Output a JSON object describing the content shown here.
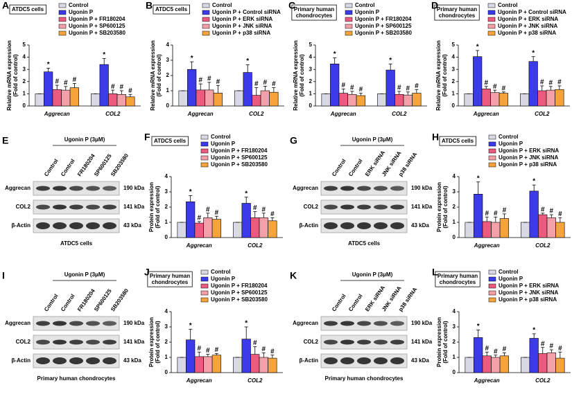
{
  "chart_data": [
    {
      "type": "bar",
      "panel": "A",
      "label": [
        "ATDC5 cells"
      ],
      "ylabel": [
        "Relative mRNA expression",
        "(Fold of control)"
      ],
      "categories": [
        "Aggrecan",
        "COL2"
      ],
      "ylim": [
        0,
        5
      ],
      "yticks": [
        0,
        1,
        2,
        3,
        4,
        5
      ],
      "series": [
        {
          "name": "Control",
          "color": "#d9d9e6",
          "values": [
            1,
            1
          ],
          "errors": [
            0,
            0
          ]
        },
        {
          "name": "Ugonin P",
          "color": "#3b3bea",
          "values": [
            2.8,
            3.4
          ],
          "errors": [
            0.3,
            0.5
          ],
          "sig": [
            "*",
            "*"
          ]
        },
        {
          "name": "Ugonin P + FR180204",
          "color": "#ec5a80",
          "values": [
            1.35,
            1.0
          ],
          "errors": [
            0.35,
            0.3
          ],
          "sig": [
            "#",
            "#"
          ]
        },
        {
          "name": "Ugonin P + SP600125",
          "color": "#f4a0a8",
          "values": [
            1.3,
            0.95
          ],
          "errors": [
            0.3,
            0.3
          ],
          "sig": [
            "#",
            "#"
          ]
        },
        {
          "name": "Ugonin P + SB203580",
          "color": "#f5a33a",
          "values": [
            1.5,
            0.75
          ],
          "errors": [
            0.35,
            0.2
          ],
          "sig": [
            "#",
            "#"
          ]
        }
      ]
    },
    {
      "type": "bar",
      "panel": "B",
      "label": [
        "ATDC5 cells"
      ],
      "ylabel": [
        "Relative mRNA expression",
        "(Fold of control)"
      ],
      "categories": [
        "Aggrecan",
        "COL2"
      ],
      "ylim": [
        0,
        4
      ],
      "yticks": [
        0,
        1,
        2,
        3,
        4
      ],
      "series": [
        {
          "name": "Control",
          "color": "#d9d9e6",
          "values": [
            1,
            1
          ],
          "errors": [
            0,
            0
          ]
        },
        {
          "name": "Ugonin P + Control siRNA",
          "color": "#3b3bea",
          "values": [
            2.4,
            2.2
          ],
          "errors": [
            0.5,
            0.5
          ],
          "sig": [
            "*",
            "*"
          ]
        },
        {
          "name": "Ugonin P + ERK siRNA",
          "color": "#ec5a80",
          "values": [
            1.05,
            0.7
          ],
          "errors": [
            0.4,
            0.5
          ],
          "sig": [
            "#",
            "#"
          ]
        },
        {
          "name": "Ugonin P + JNK siRNA",
          "color": "#f4a0a8",
          "values": [
            1.05,
            1.0
          ],
          "errors": [
            0.5,
            0.3
          ],
          "sig": [
            "#",
            "#"
          ]
        },
        {
          "name": "Ugonin P + p38 siRNA",
          "color": "#f5a33a",
          "values": [
            0.85,
            0.9
          ],
          "errors": [
            0.5,
            0.3
          ],
          "sig": [
            "#",
            "#"
          ]
        }
      ]
    },
    {
      "type": "bar",
      "panel": "C",
      "label": [
        "Primary human",
        "chondrocytes"
      ],
      "ylabel": [
        "Relative mRNA expression",
        "(Fold of control)"
      ],
      "categories": [
        "Aggrecan",
        "COL2"
      ],
      "ylim": [
        0,
        5
      ],
      "yticks": [
        0,
        1,
        2,
        3,
        4,
        5
      ],
      "series": [
        {
          "name": "Control",
          "color": "#d9d9e6",
          "values": [
            1,
            1
          ],
          "errors": [
            0,
            0
          ]
        },
        {
          "name": "Ugonin P",
          "color": "#3b3bea",
          "values": [
            3.45,
            2.95
          ],
          "errors": [
            0.5,
            0.5
          ],
          "sig": [
            "*",
            "*"
          ]
        },
        {
          "name": "Ugonin P + FR180204",
          "color": "#ec5a80",
          "values": [
            1.05,
            0.95
          ],
          "errors": [
            0.35,
            0.25
          ],
          "sig": [
            "#",
            "#"
          ]
        },
        {
          "name": "Ugonin P + SP600125",
          "color": "#f4a0a8",
          "values": [
            0.95,
            0.9
          ],
          "errors": [
            0.25,
            0.25
          ],
          "sig": [
            "#",
            "#"
          ]
        },
        {
          "name": "Ugonin P + SB203580",
          "color": "#f5a33a",
          "values": [
            0.85,
            1.05
          ],
          "errors": [
            0.2,
            0.3
          ],
          "sig": [
            "#",
            "#"
          ]
        }
      ]
    },
    {
      "type": "bar",
      "panel": "D",
      "label": [
        "Primary human",
        "chondrocytes"
      ],
      "ylabel": [
        "Relative mRNA expression",
        "(Fold of control)"
      ],
      "categories": [
        "Aggrecan",
        "COL2"
      ],
      "ylim": [
        0,
        5
      ],
      "yticks": [
        0,
        1,
        2,
        3,
        4,
        5
      ],
      "series": [
        {
          "name": "Control",
          "color": "#d9d9e6",
          "values": [
            1,
            1
          ],
          "errors": [
            0,
            0
          ]
        },
        {
          "name": "Ugonin P + Control siRNA",
          "color": "#3b3bea",
          "values": [
            4.05,
            3.65
          ],
          "errors": [
            0.5,
            0.4
          ],
          "sig": [
            "*",
            "*"
          ]
        },
        {
          "name": "Ugonin P + ERK siRNA",
          "color": "#ec5a80",
          "values": [
            1.4,
            1.25
          ],
          "errors": [
            0.2,
            0.4
          ],
          "sig": [
            "#",
            "#"
          ]
        },
        {
          "name": "Ugonin P + JNK siRNA",
          "color": "#f4a0a8",
          "values": [
            1.1,
            1.3
          ],
          "errors": [
            0.2,
            0.3
          ],
          "sig": [
            "#",
            "#"
          ]
        },
        {
          "name": "Ugonin P + p38 siRNA",
          "color": "#f5a33a",
          "values": [
            1.05,
            1.35
          ],
          "errors": [
            0.1,
            0.3
          ],
          "sig": [
            "#",
            "#"
          ]
        }
      ]
    },
    {
      "type": "bar",
      "panel": "F",
      "label": [
        "ATDC5 cells"
      ],
      "ylabel": [
        "Protein expression",
        "(Fold of control)"
      ],
      "categories": [
        "Aggrecan",
        "COL2"
      ],
      "ylim": [
        0,
        4
      ],
      "yticks": [
        0,
        1,
        2,
        3,
        4
      ],
      "series": [
        {
          "name": "Control",
          "color": "#d9d9e6",
          "values": [
            1,
            1
          ],
          "errors": [
            0,
            0
          ]
        },
        {
          "name": "Ugonin P",
          "color": "#3b3bea",
          "values": [
            2.35,
            2.25
          ],
          "errors": [
            0.4,
            0.4
          ],
          "sig": [
            "*",
            "*"
          ]
        },
        {
          "name": "Ugonin P + FR180204",
          "color": "#ec5a80",
          "values": [
            0.95,
            1.3
          ],
          "errors": [
            0.1,
            0.4
          ],
          "sig": [
            "#",
            "#"
          ]
        },
        {
          "name": "Ugonin P + SP600125",
          "color": "#f4a0a8",
          "values": [
            1.3,
            1.3
          ],
          "errors": [
            0.3,
            0.3
          ],
          "sig": [
            "#",
            "#"
          ]
        },
        {
          "name": "Ugonin P + SB203580",
          "color": "#f5a33a",
          "values": [
            1.2,
            1.1
          ],
          "errors": [
            0.2,
            0.2
          ],
          "sig": [
            "#",
            "#"
          ]
        }
      ]
    },
    {
      "type": "bar",
      "panel": "H",
      "label": [
        "ATDC5 cells"
      ],
      "ylabel": [
        "Protein expression",
        "(Fold of control)"
      ],
      "categories": [
        "Aggrecan",
        "COL2"
      ],
      "ylim": [
        0,
        4
      ],
      "yticks": [
        0,
        1,
        2,
        3,
        4
      ],
      "series": [
        {
          "name": "Control",
          "color": "#d9d9e6",
          "values": [
            1,
            1
          ],
          "errors": [
            0,
            0
          ]
        },
        {
          "name": "Ugonin P",
          "color": "#3b3bea",
          "values": [
            2.85,
            3.05
          ],
          "errors": [
            0.8,
            0.4
          ],
          "sig": [
            "*",
            "*"
          ]
        },
        {
          "name": "Ugonin P + ERK siRNA",
          "color": "#ec5a80",
          "values": [
            1.05,
            1.5
          ],
          "errors": [
            0.3,
            0.1
          ],
          "sig": [
            "#",
            "#"
          ]
        },
        {
          "name": "Ugonin P + JNK siRNA",
          "color": "#f4a0a8",
          "values": [
            1.0,
            1.3
          ],
          "errors": [
            0.35,
            0.2
          ],
          "sig": [
            "#",
            "#"
          ]
        },
        {
          "name": "Ugonin P + p38 siRNA",
          "color": "#f5a33a",
          "values": [
            1.25,
            1.0
          ],
          "errors": [
            0.3,
            0.3
          ],
          "sig": [
            "#",
            "#"
          ]
        }
      ]
    },
    {
      "type": "bar",
      "panel": "J",
      "label": [
        "Primary human",
        "chondrocytes"
      ],
      "ylabel": [
        "Protein expression",
        "(Fold of control)"
      ],
      "categories": [
        "Aggrecan",
        "COL2"
      ],
      "ylim": [
        0,
        4
      ],
      "yticks": [
        0,
        1,
        2,
        3,
        4
      ],
      "series": [
        {
          "name": "Control",
          "color": "#d9d9e6",
          "values": [
            1,
            1
          ],
          "errors": [
            0,
            0
          ]
        },
        {
          "name": "Ugonin P",
          "color": "#3b3bea",
          "values": [
            2.15,
            2.2
          ],
          "errors": [
            0.7,
            0.8
          ],
          "sig": [
            "*",
            "*"
          ]
        },
        {
          "name": "Ugonin P + FR180204",
          "color": "#ec5a80",
          "values": [
            1.05,
            1.2
          ],
          "errors": [
            0.3,
            0.5
          ],
          "sig": [
            "#",
            "#"
          ]
        },
        {
          "name": "Ugonin P + SP600125",
          "color": "#f4a0a8",
          "values": [
            1.05,
            1.0
          ],
          "errors": [
            0.15,
            0.3
          ],
          "sig": [
            "#",
            "#"
          ]
        },
        {
          "name": "Ugonin P + SB203580",
          "color": "#f5a33a",
          "values": [
            1.15,
            0.95
          ],
          "errors": [
            0.1,
            0.2
          ],
          "sig": [
            "#",
            "#"
          ]
        }
      ]
    },
    {
      "type": "bar",
      "panel": "L",
      "label": [
        "Primary human",
        "chondrocytes"
      ],
      "ylabel": [
        "Protein expression",
        "(Fold of control)"
      ],
      "categories": [
        "Aggrecan",
        "COL2"
      ],
      "ylim": [
        0,
        4
      ],
      "yticks": [
        0,
        1,
        2,
        3,
        4
      ],
      "series": [
        {
          "name": "Control",
          "color": "#d9d9e6",
          "values": [
            1,
            1
          ],
          "errors": [
            0,
            0
          ]
        },
        {
          "name": "Ugonin P",
          "color": "#3b3bea",
          "values": [
            2.3,
            2.25
          ],
          "errors": [
            0.5,
            0.3
          ],
          "sig": [
            "*",
            "*"
          ]
        },
        {
          "name": "Ugonin P + ERK siRNA",
          "color": "#ec5a80",
          "values": [
            1.1,
            1.25
          ],
          "errors": [
            0.25,
            0.4
          ],
          "sig": [
            "#",
            "#"
          ]
        },
        {
          "name": "Ugonin P + JNK siRNA",
          "color": "#f4a0a8",
          "values": [
            1.0,
            1.3
          ],
          "errors": [
            0.15,
            0.2
          ],
          "sig": [
            "#",
            "#"
          ]
        },
        {
          "name": "Ugonin P + p38 siRNA",
          "color": "#f5a33a",
          "values": [
            1.1,
            0.95
          ],
          "errors": [
            0.2,
            0.4
          ],
          "sig": [
            "#",
            "#"
          ]
        }
      ]
    }
  ],
  "blots": [
    {
      "panel": "E",
      "treatment": "Ugonin P (3μM)",
      "lanes": [
        "Control",
        "Control",
        "FR180204",
        "SP600125",
        "SB203580"
      ],
      "rows": [
        "Aggrecan",
        "COL2",
        "β-Actin"
      ],
      "sizes": [
        "190 kDa",
        "141 kDa",
        "43 kDa"
      ],
      "caption": "ATDC5 cells"
    },
    {
      "panel": "G",
      "treatment": "Ugonin P (3μM)",
      "lanes": [
        "Control",
        "Control",
        "ERK siRNA",
        "JNK siRNA",
        "p38 siRNA"
      ],
      "rows": [
        "Aggrecan",
        "COL2",
        "β-Actin"
      ],
      "sizes": [
        "190 kDa",
        "141 kDa",
        "43 kDa"
      ],
      "caption": "ATDC5 cells"
    },
    {
      "panel": "I",
      "treatment": "Ugonin P (3μM)",
      "lanes": [
        "Control",
        "Control",
        "FR180204",
        "SP600125",
        "SB203580"
      ],
      "rows": [
        "Aggrecan",
        "COL2",
        "β-Actin"
      ],
      "sizes": [
        "190 kDa",
        "141 kDa",
        "43 kDa"
      ],
      "caption": "Primary human chondrocytes"
    },
    {
      "panel": "K",
      "treatment": "Ugonin P (3μM)",
      "lanes": [
        "Control",
        "Control",
        "ERK siRNA",
        "JNK siRNA",
        "p38 siRNA"
      ],
      "rows": [
        "Aggrecan",
        "COL2",
        "β-Actin"
      ],
      "sizes": [
        "190 kDa",
        "141 kDa",
        "43 kDa"
      ],
      "caption": "Primary human chondrocytes"
    }
  ]
}
